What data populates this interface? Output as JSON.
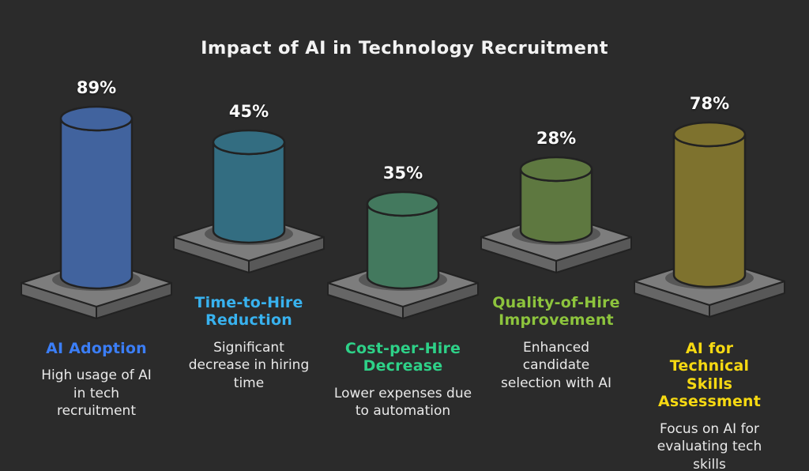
{
  "title": "Impact of AI in Technology Recruitment",
  "colors": {
    "background": "#2b2b2b",
    "platform_top": "#7d7d7d",
    "platform_left_face": "#666666",
    "platform_right_face": "#585858",
    "outline": "#222222",
    "title_text": "#f3f3f3",
    "description_text": "#e9e9e9",
    "value_label_text": "#fbfbfb"
  },
  "chart_data": {
    "type": "bar",
    "variant": "3d-cylinder-infographic",
    "unit": "%",
    "title": "Impact of AI in Technology Recruitment",
    "categories": [
      "AI Adoption",
      "Time-to-Hire Reduction",
      "Cost-per-Hire Decrease",
      "Quality-of-Hire Improvement",
      "AI for Technical Skills Assessment"
    ],
    "values": [
      89,
      45,
      35,
      28,
      78
    ],
    "legend": "none",
    "axes": "none",
    "items": [
      {
        "label": "AI Adoption",
        "value": 89,
        "pct_label": "89%",
        "description": "High usage of AI in tech recruitment",
        "cylinder_color": "#41639e",
        "label_color": "#3b7ef7"
      },
      {
        "label": "Time-to-Hire Reduction",
        "value": 45,
        "pct_label": "45%",
        "description": "Significant decrease in hiring time",
        "cylinder_color": "#336d81",
        "label_color": "#38b2ef"
      },
      {
        "label": "Cost-per-Hire Decrease",
        "value": 35,
        "pct_label": "35%",
        "description": "Lower expenses due to automation",
        "cylinder_color": "#43795e",
        "label_color": "#2ed188"
      },
      {
        "label": "Quality-of-Hire Improvement",
        "value": 28,
        "pct_label": "28%",
        "description": "Enhanced candidate selection with AI",
        "cylinder_color": "#5e7840",
        "label_color": "#8dc43d"
      },
      {
        "label": "AI for Technical Skills Assessment",
        "value": 78,
        "pct_label": "78%",
        "description": "Focus on AI for evaluating tech skills",
        "cylinder_color": "#7e722e",
        "label_color": "#f6d912"
      }
    ]
  }
}
